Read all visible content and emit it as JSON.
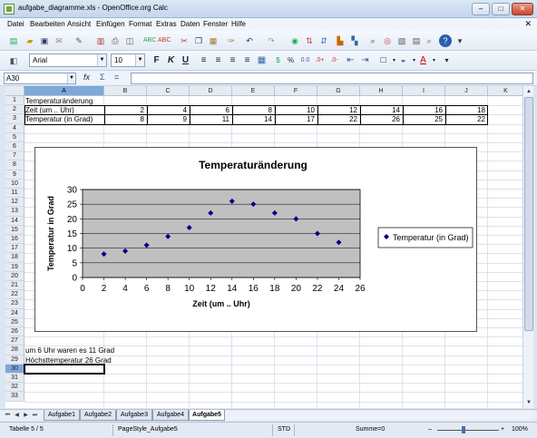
{
  "window": {
    "title": "aufgabe_diagramme.xls - OpenOffice.org Calc",
    "minimize": "–",
    "maximize": "□",
    "close": "✕"
  },
  "menu": {
    "items": [
      "Datei",
      "Bearbeiten",
      "Ansicht",
      "Einfügen",
      "Format",
      "Extras",
      "Daten",
      "Fenster",
      "Hilfe"
    ],
    "close": "✕"
  },
  "formatting": {
    "font_name": "Arial",
    "font_size": "10"
  },
  "formula_bar": {
    "cell_ref": "A30",
    "fx": "fx",
    "sum": "Σ",
    "equals": "="
  },
  "columns": [
    "A",
    "B",
    "C",
    "D",
    "E",
    "F",
    "G",
    "H",
    "I",
    "J",
    "K"
  ],
  "rows": [
    "1",
    "2",
    "3",
    "4",
    "5",
    "6",
    "7",
    "8",
    "9",
    "10",
    "11",
    "12",
    "13",
    "14",
    "15",
    "16",
    "17",
    "18",
    "19",
    "20",
    "21",
    "22",
    "23",
    "24",
    "25",
    "26",
    "27",
    "28",
    "29",
    "30",
    "31",
    "32",
    "33"
  ],
  "cells": {
    "a1": "Temperaturänderung",
    "a2": "Zeit (um .. Uhr)",
    "a3": "Temperatur (in Grad)",
    "row2_values": [
      "2",
      "4",
      "6",
      "8",
      "10",
      "12",
      "14",
      "16",
      "18"
    ],
    "row3_values": [
      "8",
      "9",
      "11",
      "14",
      "17",
      "22",
      "26",
      "25",
      "22"
    ],
    "a28": "um 6 Uhr waren es 11 Grad",
    "a29": "Höchsttemperatur 26 Grad"
  },
  "chart_data": {
    "type": "scatter",
    "title": "Temperaturänderung",
    "xlabel": "Zeit (um .. Uhr)",
    "ylabel": "Temperatur in Grad",
    "x": [
      2,
      4,
      6,
      8,
      10,
      12,
      14,
      16,
      18,
      20,
      22,
      24
    ],
    "series": [
      {
        "name": "Temperatur (in Grad)",
        "values": [
          8,
          9,
          11,
          14,
          17,
          22,
          26,
          25,
          22,
          20,
          15,
          12
        ]
      }
    ],
    "xlim": [
      0,
      26
    ],
    "ylim": [
      0,
      30
    ],
    "xticks": [
      "0",
      "2",
      "4",
      "6",
      "8",
      "10",
      "12",
      "14",
      "16",
      "18",
      "20",
      "22",
      "24",
      "26"
    ],
    "yticks": [
      "0",
      "5",
      "10",
      "15",
      "20",
      "25",
      "30"
    ],
    "grid": true,
    "legend": "right",
    "plot_bg": "#c0c0c0",
    "marker_color": "#000080"
  },
  "tabs": [
    "Aufgabe1",
    "Aufgabe2",
    "Aufgabe3",
    "Aufgabe4",
    "Aufgabe5"
  ],
  "status": {
    "sheet": "Tabelle 5 / 5",
    "page_style": "PageStyle_Aufgabe5",
    "mode": "STD",
    "sum": "Summe=0",
    "zoom": "100%"
  }
}
